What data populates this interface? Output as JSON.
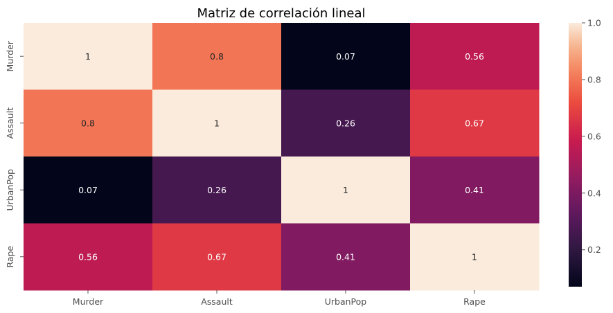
{
  "chart_data": {
    "type": "heatmap",
    "title": "Matriz de correlación lineal",
    "x_categories": [
      "Murder",
      "Assault",
      "UrbanPop",
      "Rape"
    ],
    "y_categories": [
      "Murder",
      "Assault",
      "UrbanPop",
      "Rape"
    ],
    "matrix": [
      [
        1,
        0.8,
        0.07,
        0.56
      ],
      [
        0.8,
        1,
        0.26,
        0.67
      ],
      [
        0.07,
        0.26,
        1,
        0.41
      ],
      [
        0.56,
        0.67,
        0.41,
        1
      ]
    ],
    "cell_labels": [
      [
        "1",
        "0.8",
        "0.07",
        "0.56"
      ],
      [
        "0.8",
        "1",
        "0.26",
        "0.67"
      ],
      [
        "0.07",
        "0.26",
        "1",
        "0.41"
      ],
      [
        "0.56",
        "0.67",
        "0.41",
        "1"
      ]
    ],
    "colorbar": {
      "min": 0.07,
      "max": 1.0,
      "ticks": [
        0.2,
        0.4,
        0.6,
        0.8,
        1.0
      ],
      "tick_labels": [
        "0.2",
        "0.4",
        "0.6",
        "0.8",
        "1.0"
      ]
    },
    "colormap": "rocket",
    "grid": false
  }
}
